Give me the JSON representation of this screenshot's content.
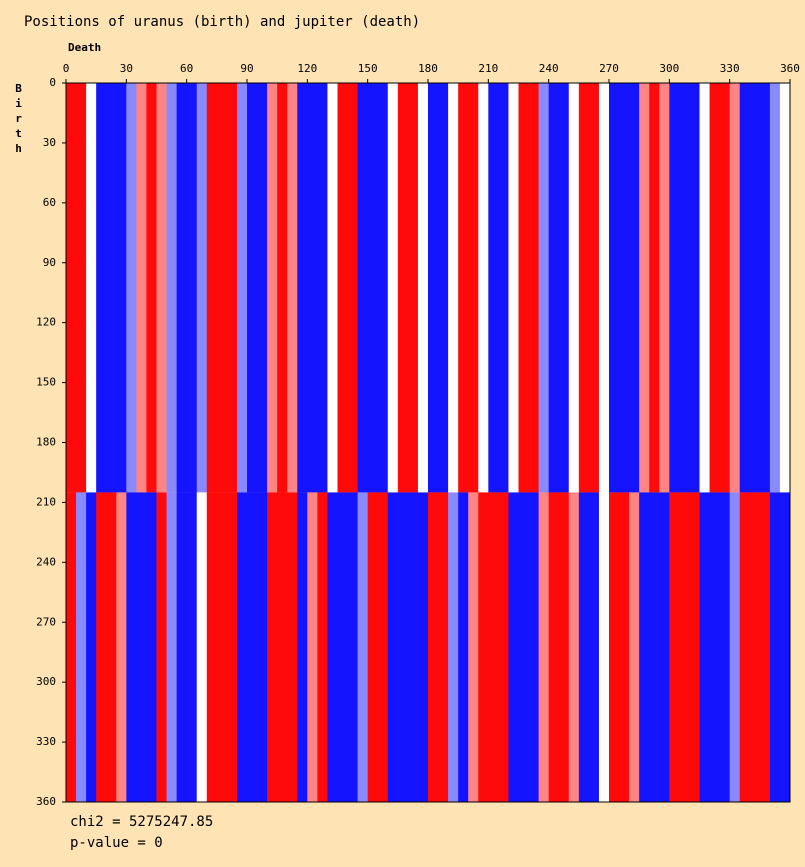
{
  "chart_data": {
    "type": "heatmap",
    "title": "Positions of uranus (birth) and jupiter (death)",
    "xlabel": "Death",
    "ylabel": "Birth",
    "xlim": [
      0,
      360
    ],
    "ylim": [
      0,
      360
    ],
    "y_direction": "down",
    "xticks": [
      0,
      30,
      60,
      90,
      120,
      150,
      180,
      210,
      240,
      270,
      300,
      330,
      360
    ],
    "yticks": [
      0,
      30,
      60,
      90,
      120,
      150,
      180,
      210,
      240,
      270,
      300,
      330,
      360
    ],
    "ybins": [
      0,
      205,
      360
    ],
    "colors": {
      "low": "#1414ff",
      "mid": "#ffffff",
      "high": "#ff0a0a"
    },
    "matrix": [
      [
        1,
        1,
        0,
        -1,
        -1,
        -1,
        -0.5,
        0.5,
        1,
        0.5,
        -0.5,
        -1,
        -1,
        -0.5,
        1,
        1,
        1,
        -0.5,
        -1,
        -1,
        0.5,
        1,
        0.5,
        -1,
        -1,
        -1,
        0,
        1,
        1,
        -1,
        -1,
        -1,
        0,
        1,
        1,
        0,
        -1,
        -1,
        0,
        1,
        1,
        0,
        -1,
        -1,
        0,
        1,
        1,
        -0.5,
        -1,
        -1,
        0,
        1,
        1,
        0,
        -1,
        -1,
        -1,
        0.5,
        1,
        0.5,
        -1,
        -1,
        -1,
        0,
        1,
        1,
        0.5,
        -1,
        -1,
        -1,
        -0.5,
        0
      ],
      [
        1,
        -0.5,
        -1,
        1,
        1,
        0.5,
        -1,
        -1,
        -1,
        1,
        -0.5,
        -1,
        -1,
        0,
        1,
        1,
        1,
        -1,
        -1,
        -1,
        1,
        1,
        1,
        -1,
        0.5,
        1,
        -1,
        -1,
        -1,
        -0.5,
        1,
        1,
        -1,
        -1,
        -1,
        -1,
        1,
        1,
        -0.5,
        -1,
        0.5,
        1,
        1,
        1,
        -1,
        -1,
        -1,
        0.5,
        1,
        1,
        0.5,
        -1,
        -1,
        0,
        1,
        1,
        0.5,
        -1,
        -1,
        -1,
        1,
        1,
        1,
        -1,
        -1,
        -1,
        -0.5,
        1,
        1,
        1,
        -1,
        -1
      ]
    ],
    "footer": [
      "chi2 = 5275247.85",
      "p-value = 0"
    ]
  }
}
